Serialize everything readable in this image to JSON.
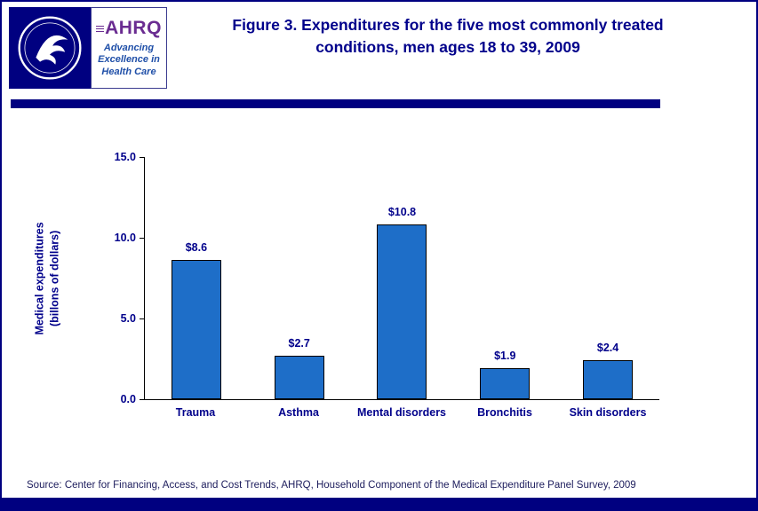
{
  "colors": {
    "navy": "#000080",
    "title_text": "#00008B",
    "bar_fill": "#1E6EC8",
    "bar_border": "#000000",
    "ahrq_purple": "#6a2c91",
    "tagline_blue": "#1F4FA8"
  },
  "header": {
    "title_line1": "Figure 3. Expenditures for the five most commonly treated",
    "title_line2": "conditions, men ages 18 to 39, 2009",
    "ahrq": {
      "name": "AHRQ",
      "tagline_line1": "Advancing",
      "tagline_line2": "Excellence in",
      "tagline_line3": "Health Care"
    }
  },
  "chart_data": {
    "type": "bar",
    "categories": [
      "Trauma",
      "Asthma",
      "Mental disorders",
      "Bronchitis",
      "Skin disorders"
    ],
    "values": [
      8.6,
      2.7,
      10.8,
      1.9,
      2.4
    ],
    "value_labels": [
      "$8.6",
      "$2.7",
      "$10.8",
      "$1.9",
      "$2.4"
    ],
    "title": "Figure 3. Expenditures for the five most commonly treated conditions, men ages 18 to 39, 2009",
    "xlabel": "",
    "ylabel_line1": "Medical expenditures",
    "ylabel_line2": "(billons of dollars)",
    "ylim": [
      0,
      15
    ],
    "yticks": [
      0,
      5,
      10,
      15
    ],
    "ytick_labels": [
      "0.0",
      "5.0",
      "10.0",
      "15.0"
    ],
    "grid": false,
    "legend": "none"
  },
  "footer": {
    "source": "Source: Center for Financing, Access, and Cost Trends, AHRQ, Household Component of the Medical Expenditure Panel Survey, 2009"
  }
}
